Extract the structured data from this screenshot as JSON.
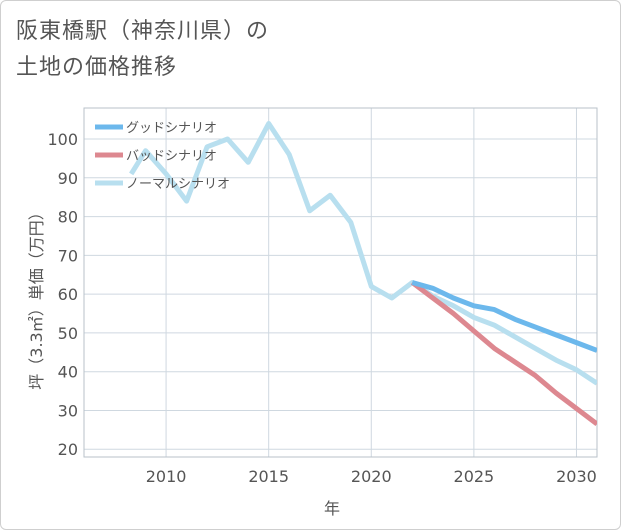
{
  "title": {
    "line1": "阪東橋駅（神奈川県）の",
    "line2": "土地の価格推移"
  },
  "chart_data": {
    "type": "line",
    "xlabel": "年",
    "ylabel": "坪（3.3㎡）単価（万円）",
    "xlim": [
      2006,
      2031
    ],
    "ylim": [
      18,
      108
    ],
    "x_ticks": [
      2010,
      2015,
      2020,
      2025,
      2030
    ],
    "y_ticks": [
      20,
      30,
      40,
      50,
      60,
      70,
      80,
      90,
      100
    ],
    "grid": true,
    "legend_position": "top-left",
    "series": [
      {
        "name": "グッドシナリオ",
        "color": "#6cb8ec",
        "x": [
          2022,
          2023,
          2024,
          2025,
          2026,
          2027,
          2028,
          2029,
          2030,
          2031
        ],
        "y": [
          63,
          61.5,
          59,
          57,
          56,
          53.5,
          51.5,
          49.5,
          47.5,
          45.5
        ]
      },
      {
        "name": "バッドシナリオ",
        "color": "#dd8890",
        "x": [
          2022,
          2023,
          2024,
          2025,
          2026,
          2027,
          2028,
          2029,
          2030,
          2031
        ],
        "y": [
          63,
          59,
          55,
          50.5,
          46,
          42.5,
          39,
          34.5,
          30.5,
          26.5
        ]
      },
      {
        "name": "ノーマルシナリオ",
        "color": "#b8dfef",
        "x": [
          2008.3,
          2009,
          2010,
          2011,
          2012,
          2013,
          2014,
          2015,
          2016,
          2017,
          2018,
          2019,
          2020,
          2021,
          2022,
          2023,
          2024,
          2025,
          2026,
          2027,
          2028,
          2029,
          2030,
          2031
        ],
        "y": [
          91,
          97,
          91,
          84,
          98,
          100,
          94,
          104,
          96,
          81.5,
          85.5,
          78.5,
          62,
          59,
          63,
          59.5,
          57,
          54,
          52,
          49,
          46,
          43,
          40.5,
          37
        ]
      }
    ]
  }
}
